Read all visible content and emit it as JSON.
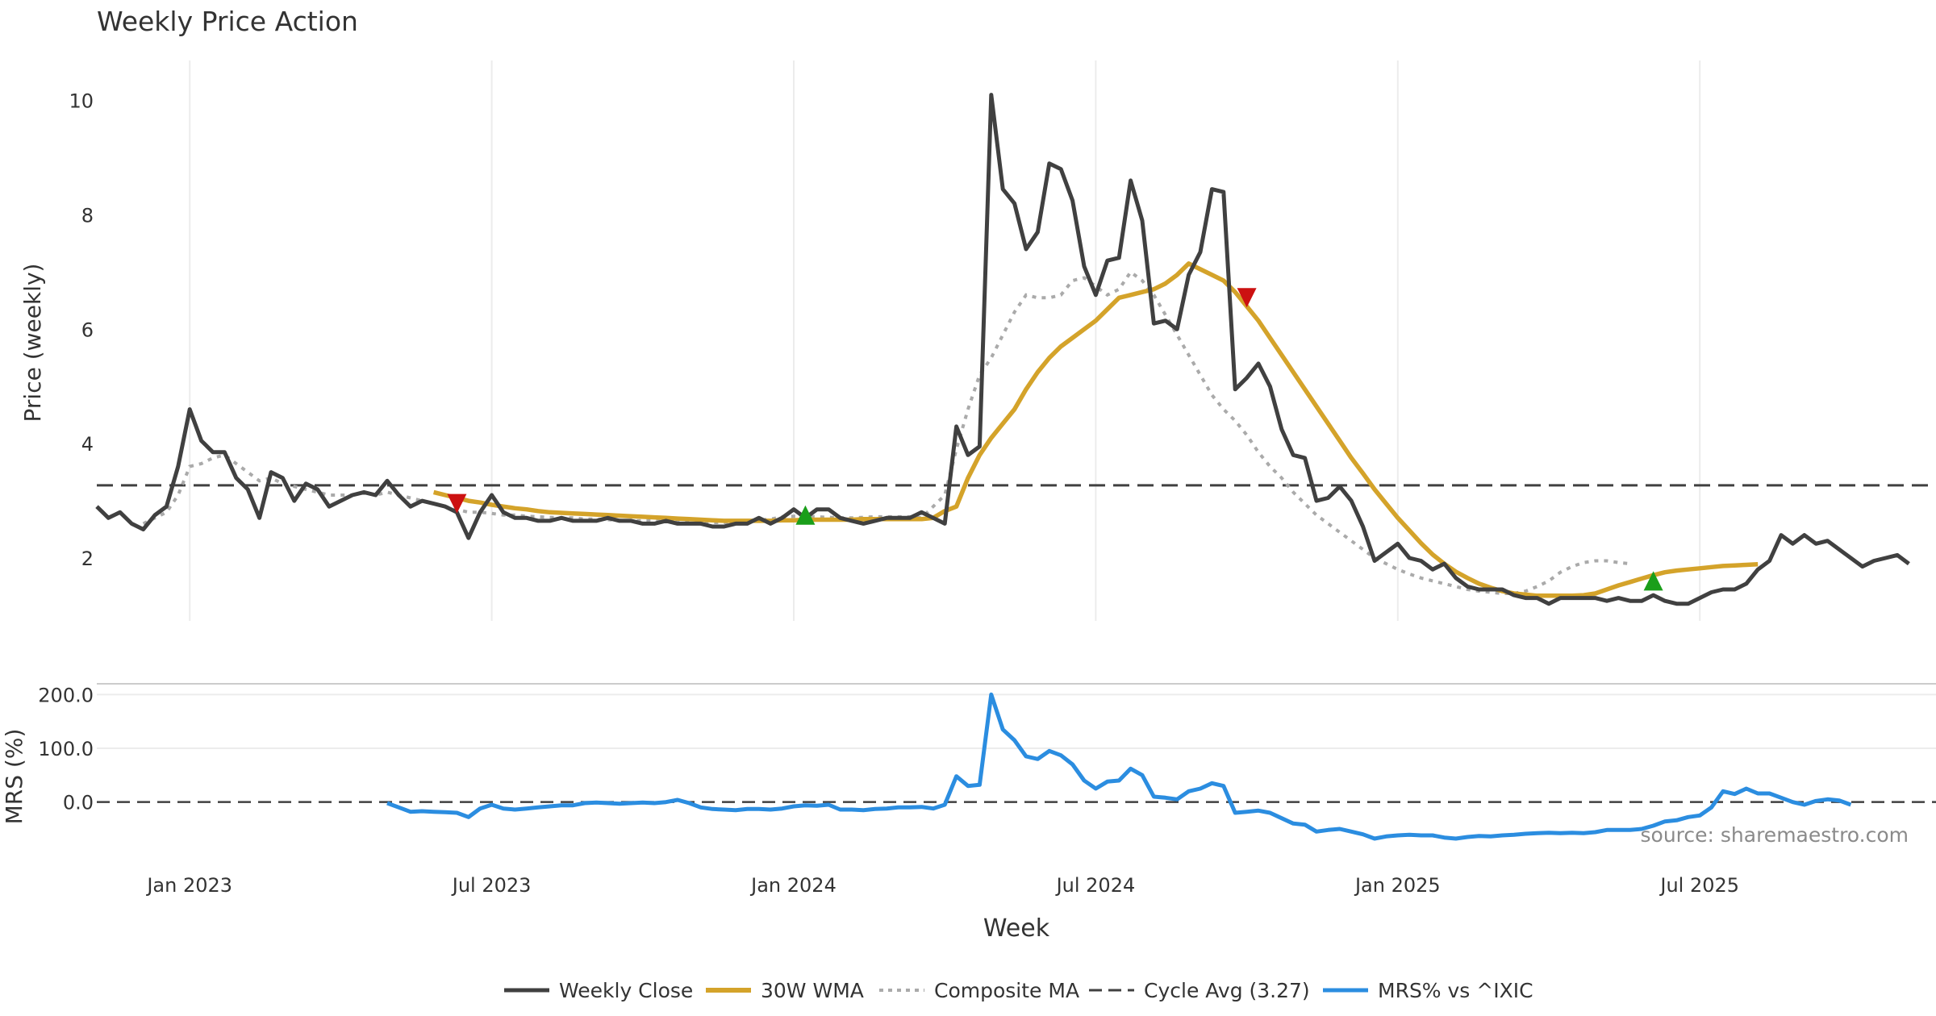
{
  "chart_data": {
    "type": "line",
    "title": "Weekly Price Action",
    "source": "source: sharemaestro.com",
    "xlabel": "Week",
    "x_ticks": [
      "Jan 2023",
      "Jul 2023",
      "Jan 2024",
      "Jul 2024",
      "Jan 2025",
      "Jul 2025"
    ],
    "x_tick_weeks": [
      9,
      35,
      61,
      87,
      113,
      139
    ],
    "price_panel": {
      "ylabel": "Price (weekly)",
      "ylim": [
        0.9,
        10.7
      ],
      "y_ticks": [
        "2",
        "4",
        "6",
        "8",
        "10"
      ],
      "y_tick_values": [
        2,
        4,
        6,
        8,
        10
      ],
      "grid": true
    },
    "mrs_panel": {
      "ylabel": "MRS (%)",
      "ylim": [
        -80,
        220
      ],
      "y_ticks": [
        "0.0",
        "100.0",
        "200.0"
      ],
      "y_tick_values": [
        0,
        100,
        200
      ],
      "zero_line": true
    },
    "colors": {
      "close": "#404040",
      "wma": "#d4a32a",
      "composite": "#aaaaaa",
      "cycle": "#404040",
      "mrs": "#2b8de0",
      "buy": "#1a9e1a",
      "sell": "#cc1111",
      "grid": "#ececec"
    },
    "legend": [
      "Weekly Close",
      "30W WMA",
      "Composite MA",
      "Cycle Avg (3.27)",
      "MRS% vs ^IXIC"
    ],
    "legend_placement": "bottom-center",
    "cycle_avg": 3.27,
    "series": [
      {
        "name": "Weekly Close",
        "start_week": 1,
        "values": [
          2.9,
          2.7,
          2.8,
          2.6,
          2.5,
          2.75,
          2.9,
          3.6,
          4.6,
          4.05,
          3.85,
          3.85,
          3.4,
          3.2,
          2.7,
          3.5,
          3.4,
          3.0,
          3.3,
          3.2,
          2.9,
          3.0,
          3.1,
          3.15,
          3.1,
          3.35,
          3.1,
          2.9,
          3.0,
          2.95,
          2.9,
          2.8,
          2.35,
          2.8,
          3.1,
          2.8,
          2.7,
          2.7,
          2.65,
          2.65,
          2.7,
          2.65,
          2.65,
          2.65,
          2.7,
          2.65,
          2.65,
          2.6,
          2.6,
          2.65,
          2.6,
          2.6,
          2.6,
          2.55,
          2.55,
          2.6,
          2.6,
          2.7,
          2.6,
          2.7,
          2.85,
          2.7,
          2.85,
          2.85,
          2.7,
          2.65,
          2.6,
          2.65,
          2.7,
          2.7,
          2.7,
          2.8,
          2.7,
          2.6,
          4.3,
          3.8,
          3.95,
          10.1,
          8.45,
          8.2,
          7.4,
          7.7,
          8.9,
          8.8,
          8.25,
          7.1,
          6.6,
          7.2,
          7.25,
          8.6,
          7.9,
          6.1,
          6.15,
          6.0,
          6.95,
          7.35,
          8.45,
          8.4,
          4.95,
          5.15,
          5.4,
          5.0,
          4.25,
          3.8,
          3.75,
          3.0,
          3.05,
          3.25,
          3.0,
          2.55,
          1.95,
          2.1,
          2.25,
          2.0,
          1.95,
          1.8,
          1.9,
          1.65,
          1.5,
          1.45,
          1.45,
          1.45,
          1.35,
          1.3,
          1.3,
          1.2,
          1.3,
          1.3,
          1.3,
          1.3,
          1.25,
          1.3,
          1.25,
          1.25,
          1.35,
          1.25,
          1.2,
          1.2,
          1.3,
          1.4,
          1.45,
          1.45,
          1.55,
          1.8,
          1.95,
          2.4,
          2.25,
          2.4,
          2.25,
          2.3,
          2.15,
          2.0,
          1.85,
          1.95,
          2.0,
          2.05,
          1.9
        ]
      },
      {
        "name": "30W WMA",
        "start_week": 30,
        "values": [
          3.15,
          3.1,
          3.05,
          3.0,
          2.97,
          2.93,
          2.9,
          2.87,
          2.85,
          2.82,
          2.8,
          2.79,
          2.78,
          2.77,
          2.76,
          2.75,
          2.74,
          2.73,
          2.72,
          2.71,
          2.7,
          2.69,
          2.68,
          2.67,
          2.66,
          2.65,
          2.65,
          2.65,
          2.65,
          2.65,
          2.66,
          2.66,
          2.67,
          2.67,
          2.67,
          2.67,
          2.67,
          2.68,
          2.68,
          2.68,
          2.68,
          2.68,
          2.68,
          2.7,
          2.82,
          2.9,
          3.4,
          3.8,
          4.1,
          4.35,
          4.6,
          4.95,
          5.25,
          5.5,
          5.7,
          5.85,
          6.0,
          6.15,
          6.35,
          6.55,
          6.6,
          6.65,
          6.7,
          6.8,
          6.95,
          7.15,
          7.05,
          6.95,
          6.85,
          6.65,
          6.4,
          6.15,
          5.85,
          5.55,
          5.25,
          4.95,
          4.65,
          4.35,
          4.05,
          3.75,
          3.48,
          3.2,
          2.95,
          2.7,
          2.48,
          2.26,
          2.06,
          1.9,
          1.76,
          1.65,
          1.55,
          1.48,
          1.42,
          1.38,
          1.36,
          1.34,
          1.34,
          1.34,
          1.34,
          1.35,
          1.38,
          1.45,
          1.52,
          1.58,
          1.64,
          1.7,
          1.75,
          1.78,
          1.8,
          1.82,
          1.84,
          1.86,
          1.87,
          1.88,
          1.89
        ]
      },
      {
        "name": "Composite MA",
        "start_week": 5,
        "values": [
          2.6,
          2.7,
          2.8,
          3.1,
          3.6,
          3.65,
          3.75,
          3.8,
          3.65,
          3.5,
          3.35,
          3.4,
          3.3,
          3.25,
          3.2,
          3.15,
          3.1,
          3.1,
          3.1,
          3.15,
          3.1,
          3.15,
          3.1,
          3.05,
          3.0,
          2.95,
          2.9,
          2.85,
          2.8,
          2.8,
          2.78,
          2.75,
          2.75,
          2.73,
          2.72,
          2.71,
          2.7,
          2.7,
          2.68,
          2.68,
          2.67,
          2.66,
          2.65,
          2.65,
          2.65,
          2.64,
          2.63,
          2.63,
          2.62,
          2.62,
          2.62,
          2.63,
          2.65,
          2.66,
          2.68,
          2.72,
          2.73,
          2.73,
          2.72,
          2.71,
          2.7,
          2.7,
          2.71,
          2.72,
          2.72,
          2.72,
          2.72,
          2.7,
          2.9,
          3.1,
          3.9,
          4.6,
          5.2,
          5.5,
          5.9,
          6.3,
          6.6,
          6.55,
          6.55,
          6.6,
          6.85,
          6.9,
          6.75,
          6.6,
          6.7,
          7.0,
          6.85,
          6.6,
          6.25,
          5.9,
          5.55,
          5.2,
          4.85,
          4.6,
          4.4,
          4.15,
          3.85,
          3.6,
          3.4,
          3.15,
          2.95,
          2.75,
          2.6,
          2.45,
          2.3,
          2.15,
          2.0,
          1.9,
          1.8,
          1.72,
          1.65,
          1.6,
          1.55,
          1.5,
          1.45,
          1.42,
          1.4,
          1.38,
          1.38,
          1.42,
          1.5,
          1.6,
          1.75,
          1.85,
          1.92,
          1.95,
          1.95,
          1.92,
          1.9
        ]
      }
    ],
    "signals": [
      {
        "type": "sell",
        "week": 32,
        "price": 2.95
      },
      {
        "type": "buy",
        "week": 62,
        "price": 2.75
      },
      {
        "type": "sell",
        "week": 100,
        "price": 6.55
      },
      {
        "type": "buy",
        "week": 135,
        "price": 1.6
      }
    ],
    "mrs_series": {
      "name": "MRS% vs ^IXIC",
      "start_week": 26,
      "values": [
        -2,
        -10,
        -18,
        -17,
        -18,
        -19,
        -20,
        -28,
        -12,
        -5,
        -12,
        -14,
        -12,
        -10,
        -8,
        -6,
        -6,
        -2,
        -1,
        -2,
        -3,
        -2,
        -1,
        -2,
        0,
        4,
        -2,
        -10,
        -13,
        -14,
        -15,
        -13,
        -13,
        -14,
        -12,
        -8,
        -6,
        -7,
        -5,
        -14,
        -14,
        -15,
        -13,
        -12,
        -10,
        -10,
        -9,
        -12,
        -5,
        48,
        30,
        32,
        200,
        135,
        115,
        85,
        80,
        95,
        87,
        70,
        40,
        25,
        38,
        40,
        62,
        50,
        10,
        8,
        5,
        20,
        25,
        35,
        30,
        -20,
        -18,
        -16,
        -20,
        -30,
        -40,
        -42,
        -55,
        -52,
        -50,
        -55,
        -60,
        -68,
        -64,
        -62,
        -61,
        -62,
        -62,
        -66,
        -68,
        -65,
        -63,
        -64,
        -62,
        -61,
        -59,
        -58,
        -57,
        -58,
        -57,
        -58,
        -56,
        -52,
        -52,
        -52,
        -50,
        -44,
        -36,
        -34,
        -28,
        -25,
        -10,
        20,
        15,
        25,
        16,
        16,
        8,
        0,
        -5,
        2,
        5,
        3,
        -5
      ]
    }
  }
}
